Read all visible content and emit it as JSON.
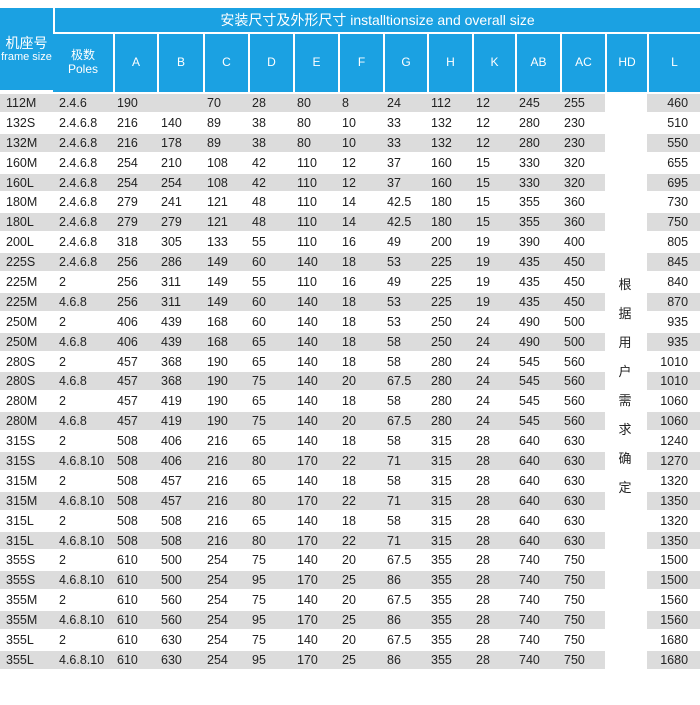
{
  "header": {
    "frame_label_cn": "机座号",
    "frame_label_en": "frame size",
    "group_title": "安装尺寸及外形尺寸 installtionsize and overall size",
    "poles_cn": "极数",
    "poles_en": "Poles",
    "columns": [
      "A",
      "B",
      "C",
      "D",
      "E",
      "F",
      "G",
      "H",
      "K",
      "AB",
      "AC",
      "HD",
      "L"
    ]
  },
  "hd_note": "根据用户需求确定",
  "rows": [
    [
      "112M",
      "2.4.6",
      "190",
      "",
      "70",
      "28",
      "80",
      "8",
      "24",
      "112",
      "12",
      "245",
      "255",
      "460"
    ],
    [
      "132S",
      "2.4.6.8",
      "216",
      "140",
      "89",
      "38",
      "80",
      "10",
      "33",
      "132",
      "12",
      "280",
      "230",
      "510"
    ],
    [
      "132M",
      "2.4.6.8",
      "216",
      "178",
      "89",
      "38",
      "80",
      "10",
      "33",
      "132",
      "12",
      "280",
      "230",
      "550"
    ],
    [
      "160M",
      "2.4.6.8",
      "254",
      "210",
      "108",
      "42",
      "110",
      "12",
      "37",
      "160",
      "15",
      "330",
      "320",
      "655"
    ],
    [
      "160L",
      "2.4.6.8",
      "254",
      "254",
      "108",
      "42",
      "110",
      "12",
      "37",
      "160",
      "15",
      "330",
      "320",
      "695"
    ],
    [
      "180M",
      "2.4.6.8",
      "279",
      "241",
      "121",
      "48",
      "110",
      "14",
      "42.5",
      "180",
      "15",
      "355",
      "360",
      "730"
    ],
    [
      "180L",
      "2.4.6.8",
      "279",
      "279",
      "121",
      "48",
      "110",
      "14",
      "42.5",
      "180",
      "15",
      "355",
      "360",
      "750"
    ],
    [
      "200L",
      "2.4.6.8",
      "318",
      "305",
      "133",
      "55",
      "110",
      "16",
      "49",
      "200",
      "19",
      "390",
      "400",
      "805"
    ],
    [
      "225S",
      "2.4.6.8",
      "256",
      "286",
      "149",
      "60",
      "140",
      "18",
      "53",
      "225",
      "19",
      "435",
      "450",
      "845"
    ],
    [
      "225M",
      "2",
      "256",
      "311",
      "149",
      "55",
      "110",
      "16",
      "49",
      "225",
      "19",
      "435",
      "450",
      "840"
    ],
    [
      "225M",
      "4.6.8",
      "256",
      "311",
      "149",
      "60",
      "140",
      "18",
      "53",
      "225",
      "19",
      "435",
      "450",
      "870"
    ],
    [
      "250M",
      "2",
      "406",
      "439",
      "168",
      "60",
      "140",
      "18",
      "53",
      "250",
      "24",
      "490",
      "500",
      "935"
    ],
    [
      "250M",
      "4.6.8",
      "406",
      "439",
      "168",
      "65",
      "140",
      "18",
      "58",
      "250",
      "24",
      "490",
      "500",
      "935"
    ],
    [
      "280S",
      "2",
      "457",
      "368",
      "190",
      "65",
      "140",
      "18",
      "58",
      "280",
      "24",
      "545",
      "560",
      "1010"
    ],
    [
      "280S",
      "4.6.8",
      "457",
      "368",
      "190",
      "75",
      "140",
      "20",
      "67.5",
      "280",
      "24",
      "545",
      "560",
      "1010"
    ],
    [
      "280M",
      "2",
      "457",
      "419",
      "190",
      "65",
      "140",
      "18",
      "58",
      "280",
      "24",
      "545",
      "560",
      "1060"
    ],
    [
      "280M",
      "4.6.8",
      "457",
      "419",
      "190",
      "75",
      "140",
      "20",
      "67.5",
      "280",
      "24",
      "545",
      "560",
      "1060"
    ],
    [
      "315S",
      "2",
      "508",
      "406",
      "216",
      "65",
      "140",
      "18",
      "58",
      "315",
      "28",
      "640",
      "630",
      "1240"
    ],
    [
      "315S",
      "4.6.8.10",
      "508",
      "406",
      "216",
      "80",
      "170",
      "22",
      "71",
      "315",
      "28",
      "640",
      "630",
      "1270"
    ],
    [
      "315M",
      "2",
      "508",
      "457",
      "216",
      "65",
      "140",
      "18",
      "58",
      "315",
      "28",
      "640",
      "630",
      "1320"
    ],
    [
      "315M",
      "4.6.8.10",
      "508",
      "457",
      "216",
      "80",
      "170",
      "22",
      "71",
      "315",
      "28",
      "640",
      "630",
      "1350"
    ],
    [
      "315L",
      "2",
      "508",
      "508",
      "216",
      "65",
      "140",
      "18",
      "58",
      "315",
      "28",
      "640",
      "630",
      "1320"
    ],
    [
      "315L",
      "4.6.8.10",
      "508",
      "508",
      "216",
      "80",
      "170",
      "22",
      "71",
      "315",
      "28",
      "640",
      "630",
      "1350"
    ],
    [
      "355S",
      "2",
      "610",
      "500",
      "254",
      "75",
      "140",
      "20",
      "67.5",
      "355",
      "28",
      "740",
      "750",
      "1500"
    ],
    [
      "355S",
      "4.6.8.10",
      "610",
      "500",
      "254",
      "95",
      "170",
      "25",
      "86",
      "355",
      "28",
      "740",
      "750",
      "1500"
    ],
    [
      "355M",
      "2",
      "610",
      "560",
      "254",
      "75",
      "140",
      "20",
      "67.5",
      "355",
      "28",
      "740",
      "750",
      "1560"
    ],
    [
      "355M",
      "4.6.8.10",
      "610",
      "560",
      "254",
      "95",
      "170",
      "25",
      "86",
      "355",
      "28",
      "740",
      "750",
      "1560"
    ],
    [
      "355L",
      "2",
      "610",
      "630",
      "254",
      "75",
      "140",
      "20",
      "67.5",
      "355",
      "28",
      "740",
      "750",
      "1680"
    ],
    [
      "355L",
      "4.6.8.10",
      "610",
      "630",
      "254",
      "95",
      "170",
      "25",
      "86",
      "355",
      "28",
      "740",
      "750",
      "1680"
    ]
  ],
  "colors": {
    "header_bg": "#1ba1e2",
    "stripe": "#dcdcdc"
  }
}
